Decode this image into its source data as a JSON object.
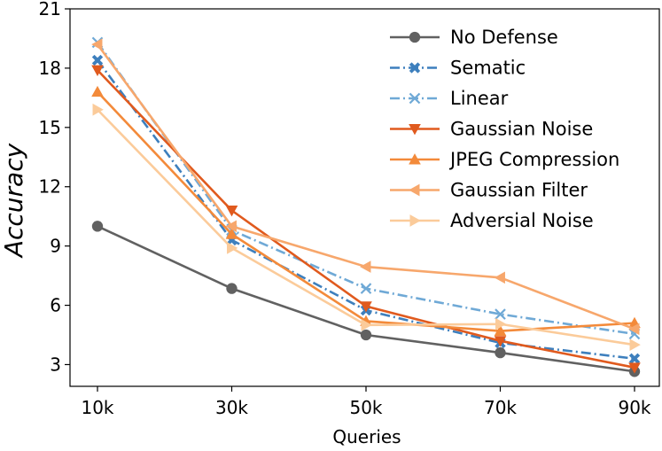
{
  "chart_data": {
    "type": "line",
    "title": "",
    "xlabel": "Queries",
    "ylabel": "Accuracy",
    "categories": [
      "10k",
      "30k",
      "50k",
      "70k",
      "90k"
    ],
    "ylim": [
      1.9,
      21
    ],
    "yticks": [
      3,
      6,
      9,
      12,
      15,
      18,
      21
    ],
    "legend_position": "top-right",
    "grid": false,
    "series": [
      {
        "name": "No Defense",
        "color": "#616161",
        "marker": "circle",
        "dash": "solid",
        "values": [
          10.0,
          6.85,
          4.5,
          3.6,
          2.65
        ]
      },
      {
        "name": "Sematic",
        "color": "#3d7fbd",
        "marker": "x-filled",
        "dash": "dashdot",
        "values": [
          18.4,
          9.3,
          5.75,
          4.1,
          3.3
        ]
      },
      {
        "name": "Linear",
        "color": "#6fa9d6",
        "marker": "x",
        "dash": "dashdot",
        "values": [
          19.3,
          9.8,
          6.85,
          5.55,
          4.55
        ]
      },
      {
        "name": "Gaussian Noise",
        "color": "#e05a1e",
        "marker": "triangle-down",
        "dash": "solid",
        "values": [
          17.9,
          10.8,
          5.95,
          4.2,
          2.85
        ]
      },
      {
        "name": "JPEG Compression",
        "color": "#f38a3a",
        "marker": "triangle-up",
        "dash": "solid",
        "values": [
          16.8,
          9.6,
          5.2,
          4.7,
          5.1
        ]
      },
      {
        "name": "Gaussian Filter",
        "color": "#f7a76c",
        "marker": "triangle-left",
        "dash": "solid",
        "values": [
          19.2,
          10.0,
          7.95,
          7.4,
          4.8
        ]
      },
      {
        "name": "Adversial Noise",
        "color": "#fbcb9a",
        "marker": "triangle-right",
        "dash": "solid",
        "values": [
          15.9,
          8.9,
          5.0,
          5.05,
          4.0
        ]
      }
    ]
  }
}
